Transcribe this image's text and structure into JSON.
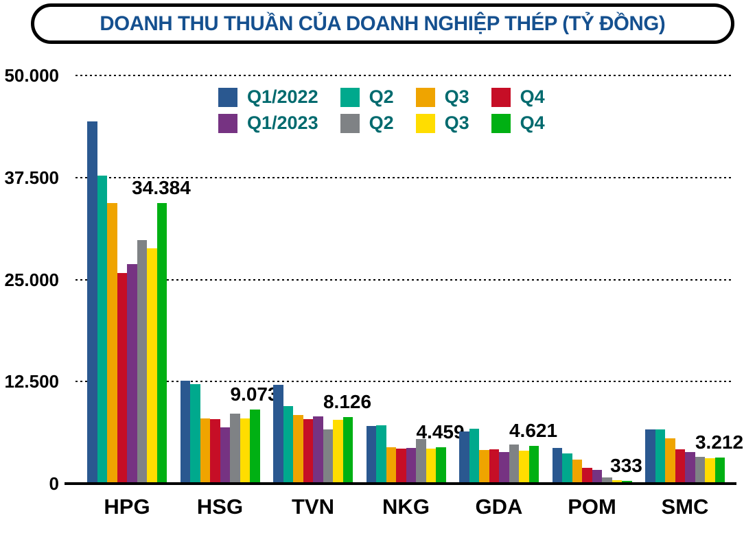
{
  "title": "DOANH THU THUẦN CỦA DOANH NGHIỆP THÉP (TỶ ĐỒNG)",
  "colors": {
    "title_text": "#15508F",
    "legend_text": "#006A6E",
    "axis_text": "#000000",
    "gridline": "#000000",
    "background": "#FFFFFF"
  },
  "y_axis": {
    "tick_labels": [
      "50.000",
      "37.500",
      "25.000",
      "12.500",
      "0"
    ],
    "tick_values": [
      50000,
      37500,
      25000,
      12500,
      0
    ]
  },
  "chart_data": {
    "type": "bar",
    "title": "DOANH THU THUẦN CỦA DOANH NGHIỆP THÉP (TỶ ĐỒNG)",
    "categories": [
      "HPG",
      "HSG",
      "TVN",
      "NKG",
      "GDA",
      "POM",
      "SMC"
    ],
    "series": [
      {
        "name": "Q1/2022",
        "color": "#2A5890",
        "values": [
          44400,
          12600,
          12100,
          7100,
          6350,
          4350,
          6600
        ]
      },
      {
        "name": "Q2",
        "color": "#00A98D",
        "values": [
          37700,
          12200,
          9500,
          7150,
          6700,
          3700,
          6600
        ]
      },
      {
        "name": "Q3",
        "color": "#EFA400",
        "values": [
          34400,
          7950,
          8400,
          4420,
          4100,
          2950,
          5550
        ]
      },
      {
        "name": "Q4",
        "color": "#C60E26",
        "values": [
          25800,
          7900,
          7900,
          4300,
          4220,
          1900,
          4180
        ]
      },
      {
        "name": "Q1/2023",
        "color": "#763382",
        "values": [
          26900,
          6900,
          8200,
          4380,
          3900,
          1650,
          3880
        ]
      },
      {
        "name": "Q2",
        "color": "#7F8285",
        "values": [
          29800,
          8600,
          6600,
          5500,
          4750,
          780,
          3270
        ]
      },
      {
        "name": "Q3",
        "color": "#FFDD00",
        "values": [
          28800,
          8000,
          7800,
          4260,
          4050,
          420,
          3080
        ]
      },
      {
        "name": "Q4",
        "color": "#00B013",
        "values": [
          34384,
          9073,
          8126,
          4459,
          4621,
          333,
          3212
        ]
      }
    ],
    "data_labels_on_last_series": [
      "34.384",
      "9.073",
      "8.126",
      "4.459",
      "4.621",
      "333",
      "3.212"
    ],
    "ylim": [
      0,
      50000
    ],
    "grid": "horizontal dotted",
    "legend_position": "top inside, two rows"
  }
}
